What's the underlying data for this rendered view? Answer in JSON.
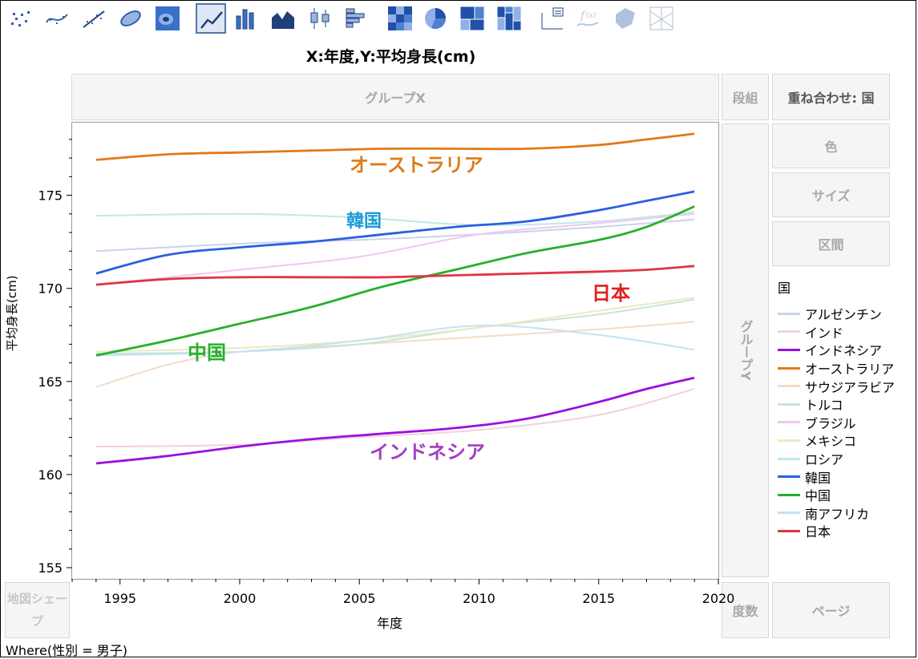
{
  "toolbar": {
    "icons": [
      "scatter-points",
      "scatter-smooth",
      "scatter-fit",
      "density-ellipse",
      "contour",
      "line",
      "bar",
      "area",
      "box-plot",
      "histogram",
      "heatmap",
      "pie",
      "treemap",
      "mosaic",
      "caption-box",
      "formula",
      "shape",
      "parallel"
    ],
    "selected": "line",
    "disabled": [
      "formula",
      "shape",
      "parallel"
    ]
  },
  "graph_title": "X:年度,Y:平均身長(cm)",
  "zones": {
    "group_x": "グループX",
    "wrap": "段組",
    "overlay": "重ね合わせ: 国",
    "color": "色",
    "size": "サイズ",
    "interval": "区間",
    "group_y": "グループY",
    "map_shape": "地図シェープ",
    "freq": "度数",
    "page": "ページ"
  },
  "footer_where": "Where(性別 = 男子)",
  "legend": {
    "title": "国",
    "items": [
      {
        "name": "アルゼンチン",
        "color": "#c9d3ee"
      },
      {
        "name": "インド",
        "color": "#f0d3d7"
      },
      {
        "name": "インドネシア",
        "color": "#9b10e0"
      },
      {
        "name": "オーストラリア",
        "color": "#e07a18"
      },
      {
        "name": "サウジアラビア",
        "color": "#f1dcc8"
      },
      {
        "name": "トルコ",
        "color": "#c8e4da"
      },
      {
        "name": "ブラジル",
        "color": "#eec8ee"
      },
      {
        "name": "メキシコ",
        "color": "#ece9c4"
      },
      {
        "name": "ロシア",
        "color": "#c2e6ec"
      },
      {
        "name": "韓国",
        "color": "#2a5fe0"
      },
      {
        "name": "中国",
        "color": "#26b02c"
      },
      {
        "name": "南アフリカ",
        "color": "#c4e2ee"
      },
      {
        "name": "日本",
        "color": "#e03444"
      }
    ]
  },
  "overlay_labels": [
    {
      "text": "オーストラリア",
      "color": "#e07a18"
    },
    {
      "text": "韓国",
      "color": "#1a9ad8"
    },
    {
      "text": "日本",
      "color": "#e02020"
    },
    {
      "text": "中国",
      "color": "#26b02c"
    },
    {
      "text": "インドネシア",
      "color": "#a040c0"
    }
  ],
  "chart_data": {
    "type": "line",
    "xlabel": "年度",
    "ylabel": "平均身長(cm)",
    "xlim": [
      1993,
      2020
    ],
    "ylim": [
      154.4,
      178.9
    ],
    "xticks": [
      1995,
      2000,
      2005,
      2010,
      2015,
      2020
    ],
    "yticks": [
      155,
      160,
      165,
      170,
      175
    ],
    "grid": false,
    "legend_position": "right",
    "series": [
      {
        "name": "アルゼンチン",
        "values": [
          [
            1994,
            172.0
          ],
          [
            2000,
            172.4
          ],
          [
            2005,
            172.6
          ],
          [
            2010,
            172.9
          ],
          [
            2015,
            173.3
          ],
          [
            2019,
            173.7
          ]
        ]
      },
      {
        "name": "インド",
        "values": [
          [
            1994,
            161.5
          ],
          [
            2000,
            161.6
          ],
          [
            2005,
            162.0
          ],
          [
            2010,
            162.4
          ],
          [
            2015,
            163.2
          ],
          [
            2019,
            164.6
          ]
        ]
      },
      {
        "name": "インドネシア",
        "values": [
          [
            1994,
            160.6
          ],
          [
            1997,
            161.0
          ],
          [
            2000,
            161.5
          ],
          [
            2003,
            161.9
          ],
          [
            2006,
            162.2
          ],
          [
            2009,
            162.5
          ],
          [
            2012,
            163.0
          ],
          [
            2015,
            163.9
          ],
          [
            2017,
            164.6
          ],
          [
            2019,
            165.2
          ]
        ]
      },
      {
        "name": "オーストラリア",
        "values": [
          [
            1994,
            176.9
          ],
          [
            1997,
            177.2
          ],
          [
            2000,
            177.3
          ],
          [
            2003,
            177.4
          ],
          [
            2006,
            177.5
          ],
          [
            2009,
            177.5
          ],
          [
            2012,
            177.5
          ],
          [
            2015,
            177.7
          ],
          [
            2017,
            178.0
          ],
          [
            2019,
            178.3
          ]
        ]
      },
      {
        "name": "サウジアラビア",
        "values": [
          [
            1994,
            164.7
          ],
          [
            1997,
            165.9
          ],
          [
            2000,
            166.6
          ],
          [
            2005,
            167.0
          ],
          [
            2010,
            167.4
          ],
          [
            2015,
            167.8
          ],
          [
            2019,
            168.2
          ]
        ]
      },
      {
        "name": "トルコ",
        "values": [
          [
            1994,
            166.5
          ],
          [
            2000,
            166.6
          ],
          [
            2005,
            167.0
          ],
          [
            2010,
            167.9
          ],
          [
            2015,
            168.6
          ],
          [
            2019,
            169.4
          ]
        ]
      },
      {
        "name": "ブラジル",
        "values": [
          [
            1994,
            170.2
          ],
          [
            2000,
            171.0
          ],
          [
            2005,
            171.7
          ],
          [
            2010,
            172.9
          ],
          [
            2015,
            173.5
          ],
          [
            2019,
            174.0
          ]
        ]
      },
      {
        "name": "メキシコ",
        "values": [
          [
            1994,
            166.6
          ],
          [
            2000,
            166.8
          ],
          [
            2005,
            167.2
          ],
          [
            2010,
            167.9
          ],
          [
            2015,
            168.8
          ],
          [
            2019,
            169.5
          ]
        ]
      },
      {
        "name": "ロシア",
        "values": [
          [
            1994,
            173.9
          ],
          [
            2000,
            174.0
          ],
          [
            2005,
            173.8
          ],
          [
            2010,
            173.4
          ],
          [
            2015,
            173.6
          ],
          [
            2019,
            174.1
          ]
        ]
      },
      {
        "name": "韓国",
        "values": [
          [
            1994,
            170.8
          ],
          [
            1997,
            171.8
          ],
          [
            2000,
            172.2
          ],
          [
            2003,
            172.5
          ],
          [
            2006,
            172.9
          ],
          [
            2009,
            173.3
          ],
          [
            2012,
            173.6
          ],
          [
            2015,
            174.2
          ],
          [
            2017,
            174.7
          ],
          [
            2019,
            175.2
          ]
        ]
      },
      {
        "name": "中国",
        "values": [
          [
            1994,
            166.4
          ],
          [
            1997,
            167.2
          ],
          [
            2000,
            168.1
          ],
          [
            2003,
            169.0
          ],
          [
            2006,
            170.1
          ],
          [
            2009,
            171.0
          ],
          [
            2012,
            171.9
          ],
          [
            2015,
            172.6
          ],
          [
            2017,
            173.3
          ],
          [
            2019,
            174.4
          ]
        ]
      },
      {
        "name": "南アフリカ",
        "values": [
          [
            1994,
            166.4
          ],
          [
            2000,
            166.6
          ],
          [
            2005,
            167.2
          ],
          [
            2010,
            168.0
          ],
          [
            2015,
            167.5
          ],
          [
            2019,
            166.7
          ]
        ]
      },
      {
        "name": "日本",
        "values": [
          [
            1994,
            170.2
          ],
          [
            1997,
            170.5
          ],
          [
            2000,
            170.6
          ],
          [
            2003,
            170.6
          ],
          [
            2006,
            170.6
          ],
          [
            2009,
            170.7
          ],
          [
            2012,
            170.8
          ],
          [
            2015,
            170.9
          ],
          [
            2017,
            171.0
          ],
          [
            2019,
            171.2
          ]
        ]
      }
    ]
  }
}
